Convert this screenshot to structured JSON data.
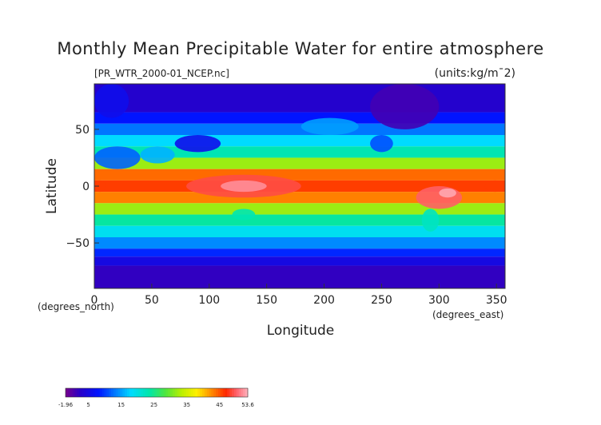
{
  "chart_data": {
    "type": "heatmap",
    "title": "Monthly Mean Precipitable Water for entire atmosphere",
    "file_label": "[PR_WTR_2000-01_NCEP.nc]",
    "units_label": "(units:kg/m¯2)",
    "xlabel": "Longitude",
    "ylabel": "Latitude",
    "x_unit_label": "(degrees_east)",
    "y_unit_label": "(degrees_north)",
    "xlim": [
      0,
      357.5
    ],
    "ylim": [
      -90,
      90
    ],
    "x_ticks": [
      0,
      50,
      100,
      150,
      200,
      250,
      300,
      350
    ],
    "y_ticks": [
      -50,
      0,
      50
    ],
    "grid": false,
    "colorbar": {
      "placement": "bottom-left",
      "min": -1.96,
      "max": 53.6,
      "tick_labels": [
        "-1.96",
        "5",
        "15",
        "25",
        "35",
        "45",
        "53.6"
      ],
      "tick_values": [
        -1.96,
        5,
        15,
        25,
        35,
        45,
        53.6
      ]
    },
    "bands": [
      {
        "lat": [
          65,
          90
        ],
        "value": 3
      },
      {
        "lat": [
          55,
          65
        ],
        "value": 8
      },
      {
        "lat": [
          45,
          55
        ],
        "value": 13
      },
      {
        "lat": [
          35,
          45
        ],
        "value": 18
      },
      {
        "lat": [
          25,
          35
        ],
        "value": 23
      },
      {
        "lat": [
          15,
          25
        ],
        "value": 32
      },
      {
        "lat": [
          5,
          15
        ],
        "value": 44
      },
      {
        "lat": [
          -5,
          5
        ],
        "value": 46
      },
      {
        "lat": [
          -15,
          -5
        ],
        "value": 43
      },
      {
        "lat": [
          -25,
          -15
        ],
        "value": 32
      },
      {
        "lat": [
          -35,
          -25
        ],
        "value": 24
      },
      {
        "lat": [
          -45,
          -35
        ],
        "value": 19
      },
      {
        "lat": [
          -55,
          -45
        ],
        "value": 14
      },
      {
        "lat": [
          -62,
          -55
        ],
        "value": 9
      },
      {
        "lat": [
          -70,
          -62
        ],
        "value": 5
      },
      {
        "lat": [
          -90,
          -70
        ],
        "value": 2
      }
    ],
    "features": [
      {
        "lon": [
          80,
          180
        ],
        "lat": [
          -10,
          10
        ],
        "value": 49
      },
      {
        "lon": [
          110,
          150
        ],
        "lat": [
          -5,
          5
        ],
        "value": 52
      },
      {
        "lon": [
          280,
          320
        ],
        "lat": [
          -20,
          0
        ],
        "value": 50
      },
      {
        "lon": [
          300,
          315
        ],
        "lat": [
          -10,
          -2
        ],
        "value": 53
      },
      {
        "lon": [
          0,
          40
        ],
        "lat": [
          15,
          35
        ],
        "value": 12
      },
      {
        "lon": [
          40,
          70
        ],
        "lat": [
          20,
          35
        ],
        "value": 16
      },
      {
        "lon": [
          70,
          110
        ],
        "lat": [
          30,
          45
        ],
        "value": 6
      },
      {
        "lon": [
          240,
          260
        ],
        "lat": [
          30,
          45
        ],
        "value": 11
      },
      {
        "lon": [
          285,
          300
        ],
        "lat": [
          -40,
          -20
        ],
        "value": 22
      },
      {
        "lon": [
          120,
          140
        ],
        "lat": [
          -30,
          -20
        ],
        "value": 23
      },
      {
        "lon": [
          340,
          357.5
        ],
        "lat": [
          -5,
          5
        ],
        "value": 46
      },
      {
        "lon": [
          0,
          10
        ],
        "lat": [
          -5,
          5
        ],
        "value": 46
      },
      {
        "lon": [
          0,
          30
        ],
        "lat": [
          60,
          90
        ],
        "value": 6
      },
      {
        "lon": [
          180,
          230
        ],
        "lat": [
          45,
          60
        ],
        "value": 15
      },
      {
        "lon": [
          240,
          300
        ],
        "lat": [
          50,
          90
        ],
        "value": 1
      }
    ]
  }
}
